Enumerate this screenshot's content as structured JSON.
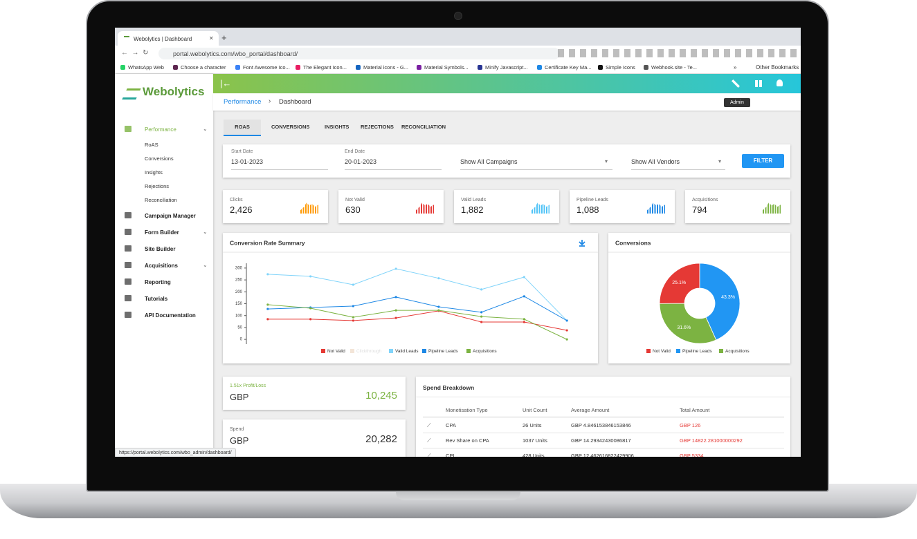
{
  "browser": {
    "tab_title": "Webolytics | Dashboard",
    "url": "portal.webolytics.com/wbo_portal/dashboard/",
    "bookmarks": [
      "WhatsApp Web",
      "Choose a character",
      "Font Awesome Ico...",
      "The Elegant Icon...",
      "Material icons - G...",
      "Material Symbols...",
      "Minify Javascript...",
      "Certificate Key Ma...",
      "Simple Icons",
      "Webhook.site - Te..."
    ],
    "more": "»",
    "other_bookmarks": "Other Bookmarks",
    "status_url": "https://portal.webolytics.com/wbo_admin/dashboard/"
  },
  "app": {
    "logo": "Webolytics",
    "sidebar": [
      {
        "label": "Performance",
        "items": [
          "RoAS",
          "Conversions",
          "Insights",
          "Rejections",
          "Reconciliation"
        ]
      },
      {
        "label": "Campaign Manager"
      },
      {
        "label": "Form Builder"
      },
      {
        "label": "Site Builder"
      },
      {
        "label": "Acquisitions"
      },
      {
        "label": "Reporting"
      },
      {
        "label": "Tutorials"
      },
      {
        "label": "API Documentation"
      }
    ],
    "breadcrumb": [
      "Performance",
      "Dashboard"
    ],
    "tooltip": "Admin",
    "tabs": [
      "ROAS",
      "CONVERSIONS",
      "INSIGHTS",
      "REJECTIONS",
      "RECONCILIATION"
    ],
    "filters": {
      "start_label": "Start Date",
      "start": "13-01-2023",
      "end_label": "End Date",
      "end": "20-01-2023",
      "campaigns": "Show All Campaigns",
      "vendors": "Show All Vendors",
      "button": "FILTER"
    },
    "kpis": [
      {
        "label": "Clicks",
        "value": "2,426",
        "color": "#ff9800"
      },
      {
        "label": "Not Valid",
        "value": "630",
        "color": "#e53935"
      },
      {
        "label": "Valid Leads",
        "value": "1,882",
        "color": "#4fc3f7"
      },
      {
        "label": "Pipeline Leads",
        "value": "1,088",
        "color": "#1e88e5"
      },
      {
        "label": "Acquisitions",
        "value": "794",
        "color": "#7cb342"
      }
    ],
    "profit": {
      "label": "1.51x Profit/Loss",
      "currency": "GBP",
      "value": "10,245"
    },
    "spend": {
      "label": "Spend",
      "currency": "GBP",
      "value": "20,282"
    },
    "spend_breakdown": {
      "title": "Spend Breakdown",
      "columns": [
        "Monetisation Type",
        "Unit Count",
        "Average Amount",
        "Total Amount"
      ],
      "rows": [
        [
          "CPA",
          "26 Units",
          "GBP 4.846153846153846",
          "GBP 126"
        ],
        [
          "Rev Share on CPA",
          "1037 Units",
          "GBP 14.29342430086817",
          "GBP 14822.281000000292"
        ],
        [
          "CPL",
          "428 Units",
          "GBP 12.462616822429906",
          "GBP 5334"
        ]
      ]
    }
  },
  "chart_data": [
    {
      "type": "line",
      "title": "Conversion Rate Summary",
      "categories": [
        null,
        null,
        null,
        null,
        null,
        null,
        null,
        null
      ],
      "ylim": [
        -20,
        320
      ],
      "yticks": [
        0,
        50,
        100,
        150,
        200,
        250,
        300
      ],
      "series": [
        {
          "name": "Not Valid",
          "color": "#e53935",
          "values": [
            85,
            85,
            79,
            90,
            120,
            73,
            73,
            38
          ]
        },
        {
          "name": "Clickthrough",
          "color": "#f3e5d8",
          "hidden": true,
          "values": [
            null,
            null,
            null,
            null,
            null,
            null,
            null,
            null
          ]
        },
        {
          "name": "Valid Leads",
          "color": "#81d4fa",
          "values": [
            274,
            265,
            230,
            297,
            257,
            210,
            262,
            79
          ]
        },
        {
          "name": "Pipeline Leads",
          "color": "#1e88e5",
          "values": [
            128,
            134,
            140,
            178,
            137,
            114,
            181,
            79
          ]
        },
        {
          "name": "Acquisitions",
          "color": "#7cb342",
          "values": [
            146,
            131,
            93,
            122,
            122,
            96,
            85,
            0
          ]
        }
      ]
    },
    {
      "type": "pie",
      "title": "Conversions",
      "categories": [
        "Not Valid",
        "Pipeline Leads",
        "Acquisitions"
      ],
      "values": [
        25.1,
        43.3,
        31.6
      ],
      "value_labels": [
        "25.1%",
        "43.3%",
        "31.6%"
      ],
      "colors": [
        "#e53935",
        "#2196f3",
        "#7cb342"
      ]
    }
  ]
}
